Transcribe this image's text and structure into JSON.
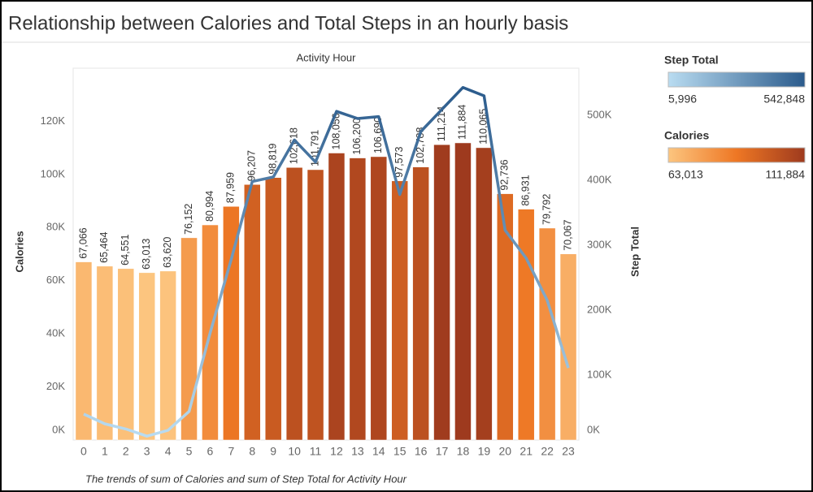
{
  "chart_data": {
    "type": "bar-line",
    "title": "Relationship between Calories and Total Steps in an hourly basis",
    "x_title": "Activity Hour",
    "caption": "The trends of sum of Calories and sum of Step Total for Activity Hour",
    "categories": [
      "0",
      "1",
      "2",
      "3",
      "4",
      "5",
      "6",
      "7",
      "8",
      "9",
      "10",
      "11",
      "12",
      "13",
      "14",
      "15",
      "16",
      "17",
      "18",
      "19",
      "20",
      "21",
      "22",
      "23"
    ],
    "series": [
      {
        "name": "Calories",
        "type": "bar",
        "colors": [
          "#fcc57f",
          "#ee7724",
          "#9e3a1e"
        ],
        "values": [
          67066,
          65464,
          64551,
          63013,
          63620,
          76152,
          80994,
          87959,
          96207,
          98819,
          102618,
          101791,
          108056,
          106200,
          106690,
          97573,
          102788,
          111214,
          111884,
          110065,
          92736,
          86931,
          79792,
          70067
        ],
        "value_labels": [
          "67,066",
          "65,464",
          "64,551",
          "63,013",
          "63,620",
          "76,152",
          "80,994",
          "87,959",
          "96,207",
          "98,819",
          "102,618",
          "101,791",
          "108,056",
          "106,200",
          "106,690",
          "97,573",
          "102,788",
          "111,214",
          "111,884",
          "110,065",
          "92,736",
          "86,931",
          "79,792",
          "70,067"
        ]
      },
      {
        "name": "Step Total",
        "type": "line",
        "axis": "y2",
        "colors": [
          "#b9dcf1",
          "#2b5b8c"
        ],
        "values": [
          40000,
          25000,
          17000,
          5996,
          15000,
          44000,
          165000,
          278000,
          398000,
          405000,
          462000,
          428000,
          506000,
          495000,
          498000,
          378000,
          475000,
          509000,
          542848,
          530000,
          323000,
          280000,
          215000,
          111000
        ]
      }
    ],
    "y_title": "Calories",
    "y2_title": "Step Total",
    "ylim": [
      0,
      140000
    ],
    "yticks": [
      {
        "value": 0,
        "label": "0K"
      },
      {
        "value": 20000,
        "label": "20K"
      },
      {
        "value": 40000,
        "label": "40K"
      },
      {
        "value": 60000,
        "label": "60K"
      },
      {
        "value": 80000,
        "label": "80K"
      },
      {
        "value": 100000,
        "label": "100K"
      },
      {
        "value": 120000,
        "label": "120K"
      }
    ],
    "y2lim": [
      0,
      572500
    ],
    "y2ticks": [
      {
        "value": 0,
        "label": "0K"
      },
      {
        "value": 100000,
        "label": "100K"
      },
      {
        "value": 200000,
        "label": "200K"
      },
      {
        "value": 300000,
        "label": "300K"
      },
      {
        "value": 400000,
        "label": "400K"
      },
      {
        "value": 500000,
        "label": "500K"
      }
    ],
    "legends": [
      {
        "title": "Step Total",
        "min": {
          "value": 5996,
          "label": "5,996"
        },
        "max": {
          "value": 542848,
          "label": "542,848"
        }
      },
      {
        "title": "Calories",
        "min": {
          "value": 63013,
          "label": "63,013"
        },
        "max": {
          "value": 111884,
          "label": "111,884"
        }
      }
    ]
  }
}
